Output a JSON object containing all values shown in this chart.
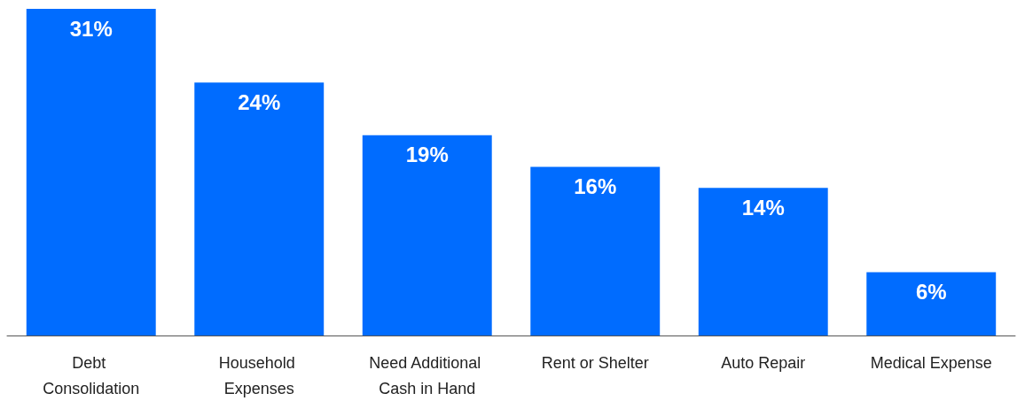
{
  "chart_data": {
    "type": "bar",
    "categories": [
      "Debt Consolidation",
      "Household Expenses",
      "Need Additional Cash in Hand",
      "Rent or Shelter",
      "Auto Repair",
      "Medical Expense"
    ],
    "values": [
      31,
      24,
      19,
      16,
      14,
      6
    ],
    "value_labels": [
      "31%",
      "24%",
      "19%",
      "16%",
      "14%",
      "6%"
    ],
    "color": "#006cff"
  }
}
